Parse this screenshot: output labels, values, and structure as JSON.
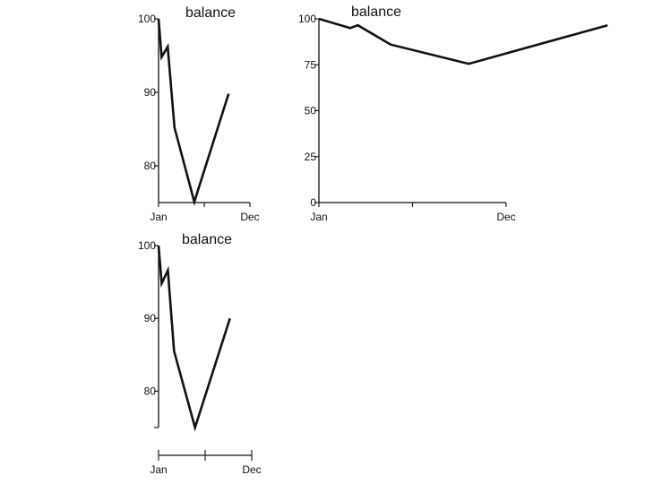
{
  "chart_data": [
    {
      "type": "line",
      "title": "balance",
      "xlabel": "",
      "ylabel": "",
      "x_tick_labels": [
        "Jan",
        "",
        "Dec"
      ],
      "y_ticks": [
        80,
        90,
        100
      ],
      "ylim": [
        75,
        100
      ],
      "grid": false,
      "series": [
        {
          "x": [
            0,
            0.4,
            1.2,
            2.1,
            4.7,
            9.2
          ],
          "y": [
            100,
            94.8,
            96.2,
            85.2,
            75.1,
            89.8
          ]
        }
      ],
      "color": "#111111"
    },
    {
      "type": "line",
      "title": "balance",
      "xlabel": "",
      "ylabel": "",
      "x_tick_labels": [
        "Jan",
        "",
        "Dec"
      ],
      "y_ticks": [
        0,
        25,
        50,
        75,
        100
      ],
      "ylim": [
        0,
        100
      ],
      "grid": false,
      "series": [
        {
          "x": [
            0,
            2.0,
            2.5,
            4.6,
            9.6,
            18.5
          ],
          "y": [
            100,
            95,
            96.5,
            86,
            75.5,
            96.5
          ]
        }
      ],
      "color": "#111111"
    },
    {
      "type": "line",
      "title": "balance",
      "xlabel": "",
      "ylabel": "",
      "x_tick_labels": [
        "Jan",
        "",
        "Dec"
      ],
      "y_ticks": [
        80,
        90,
        100
      ],
      "ylim": [
        75,
        100
      ],
      "grid": false,
      "series": [
        {
          "x": [
            0,
            0.4,
            1.2,
            2.0,
            4.7,
            9.2
          ],
          "y": [
            100,
            94.8,
            96.6,
            85.5,
            75.0,
            90.0
          ]
        }
      ],
      "color": "#111111"
    }
  ]
}
